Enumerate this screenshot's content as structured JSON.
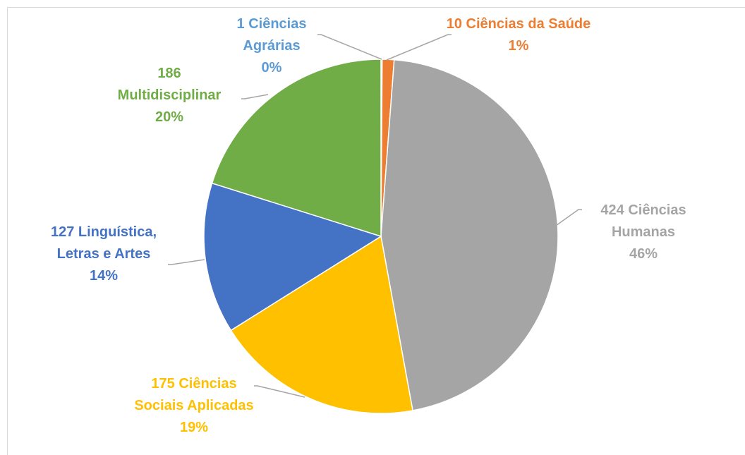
{
  "chart_data": {
    "type": "pie",
    "categories": [
      "Ciências Agrárias",
      "Ciências da Saúde",
      "Ciências Humanas",
      "Ciências Sociais Aplicadas",
      "Linguística, Letras e Artes",
      "Multidisciplinar"
    ],
    "values": [
      1,
      10,
      424,
      175,
      127,
      186
    ],
    "percent_labels": [
      "0%",
      "1%",
      "46%",
      "19%",
      "14%",
      "20%"
    ],
    "colors": [
      "#5b9bd5",
      "#ed7d31",
      "#a5a5a5",
      "#ffc000",
      "#4472c4",
      "#70ad47"
    ]
  }
}
